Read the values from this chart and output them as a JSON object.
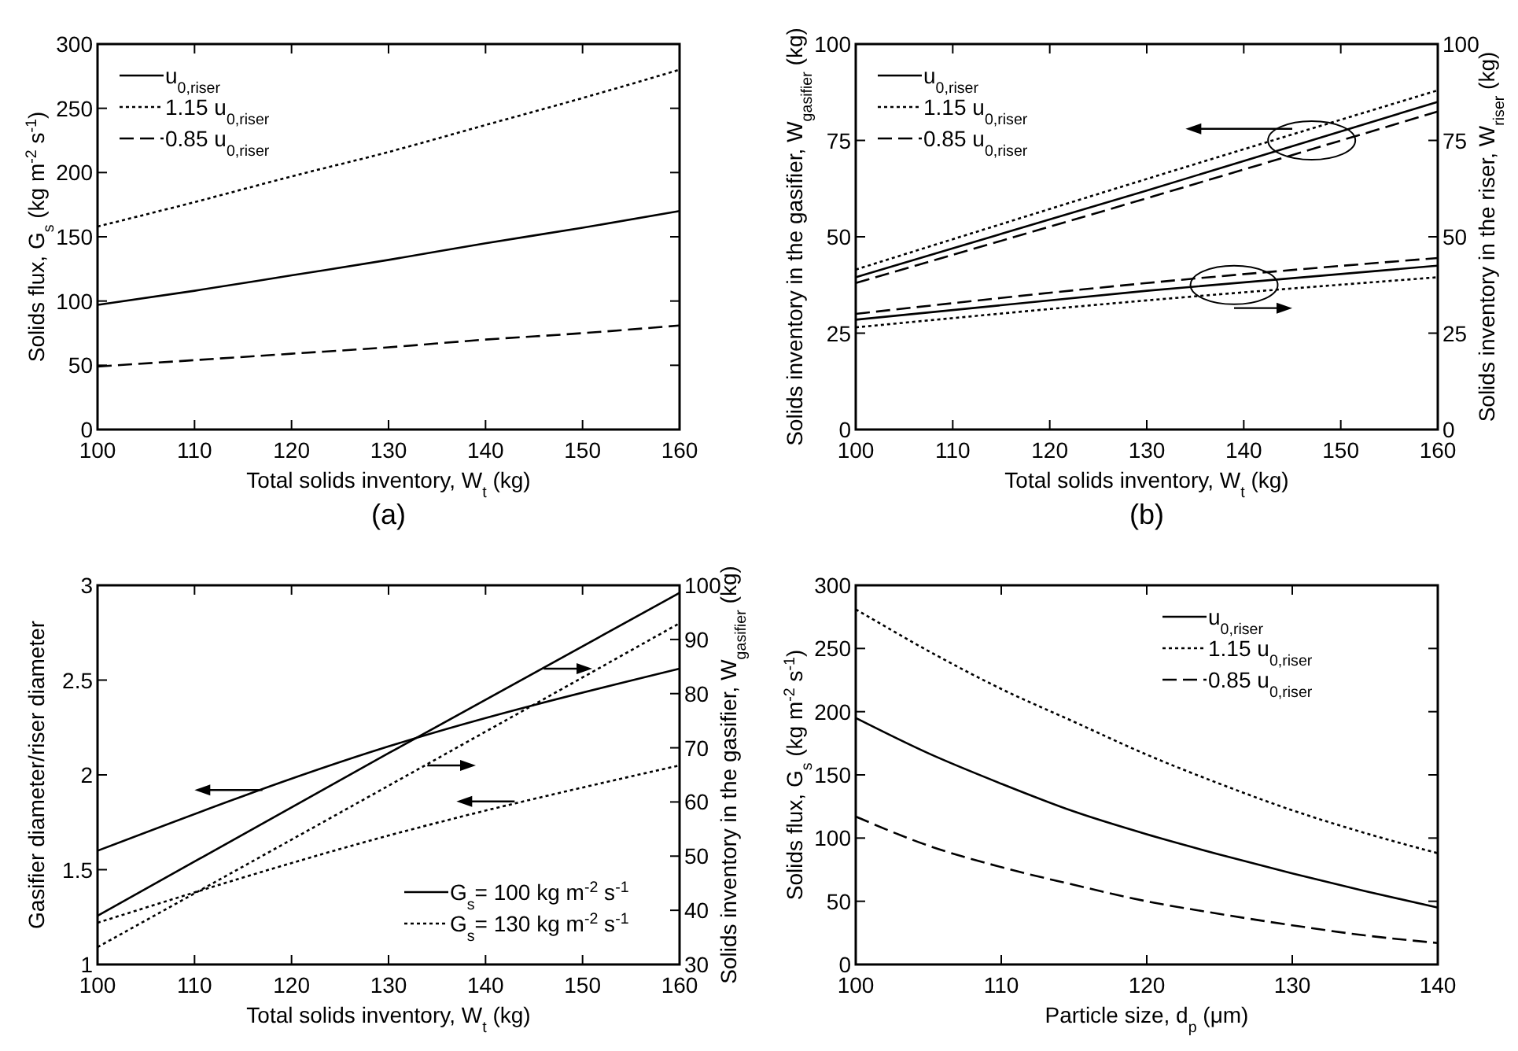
{
  "chart_data": [
    {
      "type": "line",
      "xlabel": "Total solids inventory, W$_{t}$ (kg)",
      "ylabel": "Solids flux, G$_{s}$ (kg m$^{-2}$ s$^{-1}$)",
      "xlim": [
        100,
        160
      ],
      "xticks": [
        100,
        110,
        120,
        130,
        140,
        150,
        160
      ],
      "ylim": [
        0,
        300
      ],
      "yticks": [
        0,
        50,
        100,
        150,
        200,
        250,
        300
      ],
      "legend": "top left",
      "annotations": [
        "(a)"
      ],
      "x": [
        100,
        110,
        120,
        130,
        140,
        150,
        160
      ],
      "series": [
        {
          "name": "u$_{0,riser}$",
          "color": "#000000",
          "line_style": "solid",
          "values": [
            97,
            108,
            120,
            132,
            145,
            157,
            170
          ]
        },
        {
          "name": "1.15 u$_{0,riser}$",
          "color": "#000000",
          "line_style": "dotted",
          "values": [
            158,
            177,
            197,
            216,
            237,
            258,
            280
          ]
        },
        {
          "name": "0.85 u$_{0,riser}$",
          "color": "#000000",
          "line_style": "dashed",
          "values": [
            49,
            54,
            59,
            64,
            70,
            75,
            81
          ]
        }
      ]
    },
    {
      "type": "line",
      "xlabel": "Total solids inventory, W$_{t}$ (kg)",
      "ylabel": "Solids inventory in the gasifier, W$_{gasifier}$ (kg)",
      "y2label": "Solids inventory in the riser, W$_{riser}$ (kg)",
      "xlim": [
        100,
        160
      ],
      "xticks": [
        100,
        110,
        120,
        130,
        140,
        150,
        160
      ],
      "ylim": [
        0,
        100
      ],
      "yticks": [
        0,
        25,
        50,
        75,
        100
      ],
      "y2lim": [
        0,
        100
      ],
      "y2ticks": [
        0,
        25,
        50,
        75,
        100
      ],
      "legend": "top left",
      "annotations": [
        "(b)"
      ],
      "x": [
        100,
        130,
        160
      ],
      "series": [
        {
          "name": "u$_{0,riser}$",
          "color": "#000000",
          "line_style": "solid",
          "values": [
            39.5,
            62,
            85
          ]
        },
        {
          "name": "1.15 u$_{0,riser}$",
          "color": "#000000",
          "line_style": "dotted",
          "values": [
            41.5,
            65,
            88
          ]
        },
        {
          "name": "0.85 u$_{0,riser}$",
          "color": "#000000",
          "line_style": "dashed",
          "values": [
            38,
            60,
            82.5
          ]
        },
        {
          "color": "#000000",
          "line_style": "solid",
          "axis": "y2",
          "values": [
            28.5,
            36,
            42.5
          ]
        },
        {
          "color": "#000000",
          "line_style": "dotted",
          "axis": "y2",
          "values": [
            26.5,
            33.5,
            39.5
          ]
        },
        {
          "color": "#000000",
          "line_style": "dashed",
          "axis": "y2",
          "values": [
            30,
            38,
            44.5
          ]
        }
      ]
    },
    {
      "type": "line",
      "xlabel": "Total solids inventory, W$_{t}$ (kg)",
      "ylabel": "Gasifier diameter/riser diameter",
      "y2label": "Solids inventory in the gasifier, W$_{gasifier}$ (kg)",
      "xlim": [
        100,
        160
      ],
      "xticks": [
        100,
        110,
        120,
        130,
        140,
        150,
        160
      ],
      "ylim": [
        1,
        3
      ],
      "yticks": [
        1,
        1.5,
        2,
        2.5,
        3
      ],
      "y2lim": [
        30,
        100
      ],
      "y2ticks": [
        30,
        40,
        50,
        60,
        70,
        80,
        90,
        100
      ],
      "legend": "bottom right",
      "x": [
        100,
        130,
        160
      ],
      "series": [
        {
          "name": "G$_{s}$= 100 kg m$^{-2}$ s$^{-1}$",
          "color": "#000000",
          "line_style": "solid",
          "values": [
            1.6,
            2.15,
            2.56
          ]
        },
        {
          "name": "G$_{s}$= 130 kg m$^{-2}$ s$^{-1}$",
          "color": "#000000",
          "line_style": "dotted",
          "values": [
            1.22,
            1.68,
            2.05
          ]
        },
        {
          "color": "#000000",
          "line_style": "solid",
          "axis": "y2",
          "values": [
            39,
            69,
            98.6
          ]
        },
        {
          "color": "#000000",
          "line_style": "dotted",
          "axis": "y2",
          "values": [
            33.2,
            63,
            93
          ]
        }
      ]
    },
    {
      "type": "line",
      "xlabel": "Particle size, d$_{p}$ (μm)",
      "ylabel": "Solids flux, G$_{s}$ (kg m$^{-2}$ s$^{-1}$)",
      "xlim": [
        100,
        140
      ],
      "xticks": [
        100,
        110,
        120,
        130,
        140
      ],
      "ylim": [
        0,
        300
      ],
      "yticks": [
        0,
        50,
        100,
        150,
        200,
        250,
        300
      ],
      "legend": "top right",
      "x": [
        100,
        105,
        110,
        115,
        120,
        125,
        130,
        135,
        140
      ],
      "series": [
        {
          "name": "u$_{0,riser}$",
          "color": "#000000",
          "line_style": "solid",
          "values": [
            195,
            167,
            143,
            121,
            103,
            87,
            72,
            58,
            45
          ]
        },
        {
          "name": "1.15 u$_{0,riser}$",
          "color": "#000000",
          "line_style": "dotted",
          "values": [
            281,
            248,
            218,
            192,
            166,
            143,
            122,
            104,
            88
          ]
        },
        {
          "name": "0.85 u$_{0,riser}$",
          "color": "#000000",
          "line_style": "dashed",
          "values": [
            117,
            94,
            77,
            63,
            50,
            40,
            31,
            23,
            17
          ]
        }
      ]
    }
  ]
}
